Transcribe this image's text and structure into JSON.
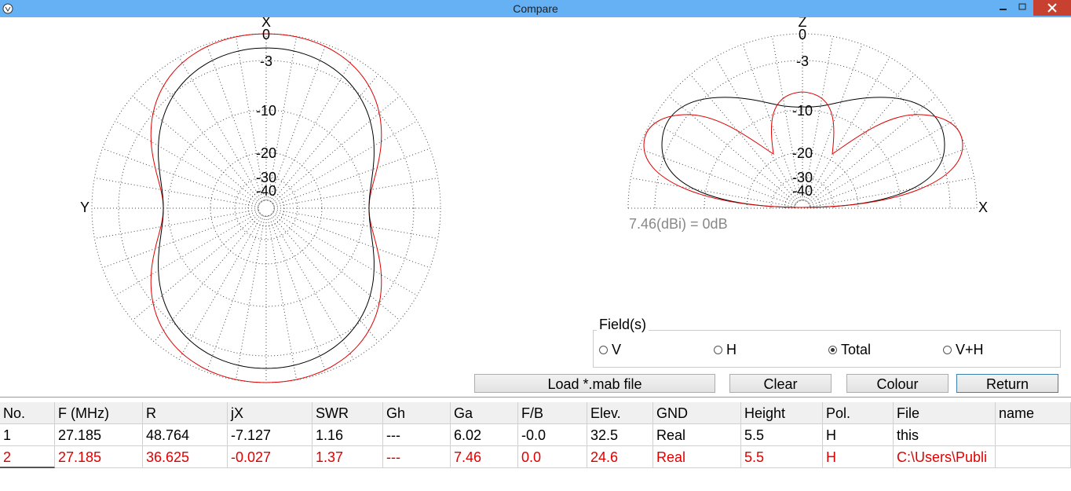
{
  "window": {
    "title": "Compare"
  },
  "azimuth_plot": {
    "axis_labels": [
      "X",
      "Y"
    ],
    "ring_labels": [
      "0",
      "-3",
      "-10",
      "-20",
      "-30",
      "-40"
    ]
  },
  "elevation_plot": {
    "axis_labels": [
      "Z",
      "X"
    ],
    "ring_labels": [
      "0",
      "-3",
      "-10",
      "-20",
      "-30",
      "-40"
    ],
    "reference": "7.46(dBi) = 0dB"
  },
  "fields": {
    "legend": "Field(s)",
    "options": [
      "V",
      "H",
      "Total",
      "V+H"
    ],
    "selected": 2
  },
  "buttons": [
    "Load *.mab file",
    "Clear",
    "Colour",
    "Return"
  ],
  "table": {
    "columns": [
      "No.",
      "F (MHz)",
      "R",
      "jX",
      "SWR",
      "Gh",
      "Ga",
      "F/B",
      "Elev.",
      "GND",
      "Height",
      "Pol.",
      "File",
      "name"
    ],
    "rows": [
      [
        "1",
        "27.185",
        "48.764",
        "-7.127",
        "1.16",
        "---",
        "6.02",
        "-0.0",
        "32.5",
        "Real",
        "5.5",
        "H",
        "this",
        ""
      ],
      [
        "2",
        "27.185",
        "36.625",
        "-0.027",
        "1.37",
        "---",
        "7.46",
        "0.0",
        "24.6",
        "Real",
        "5.5",
        "H",
        "C:\\Users\\Publi",
        ""
      ]
    ]
  }
}
